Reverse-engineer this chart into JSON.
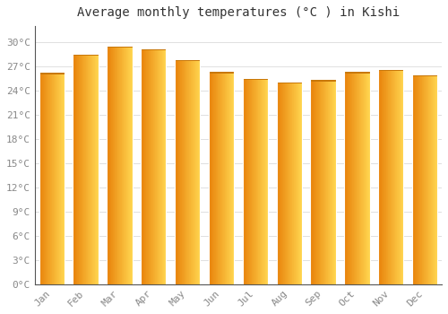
{
  "title": "Average monthly temperatures (°C ) in Kishi",
  "months": [
    "Jan",
    "Feb",
    "Mar",
    "Apr",
    "May",
    "Jun",
    "Jul",
    "Aug",
    "Sep",
    "Oct",
    "Nov",
    "Dec"
  ],
  "temperatures": [
    26.2,
    28.5,
    29.5,
    29.1,
    27.8,
    26.3,
    25.5,
    25.0,
    25.3,
    26.3,
    26.6,
    25.9
  ],
  "bar_color_left": "#E8820A",
  "bar_color_right": "#FFD44E",
  "bar_color_top": "#C8780A",
  "background_color": "#FFFFFF",
  "grid_color": "#E0E0E0",
  "ylim": [
    0,
    32
  ],
  "yticks": [
    0,
    3,
    6,
    9,
    12,
    15,
    18,
    21,
    24,
    27,
    30
  ],
  "ytick_labels": [
    "0°C",
    "3°C",
    "6°C",
    "9°C",
    "12°C",
    "15°C",
    "18°C",
    "21°C",
    "24°C",
    "27°C",
    "30°C"
  ],
  "font_family": "monospace",
  "title_fontsize": 10,
  "tick_fontsize": 8
}
